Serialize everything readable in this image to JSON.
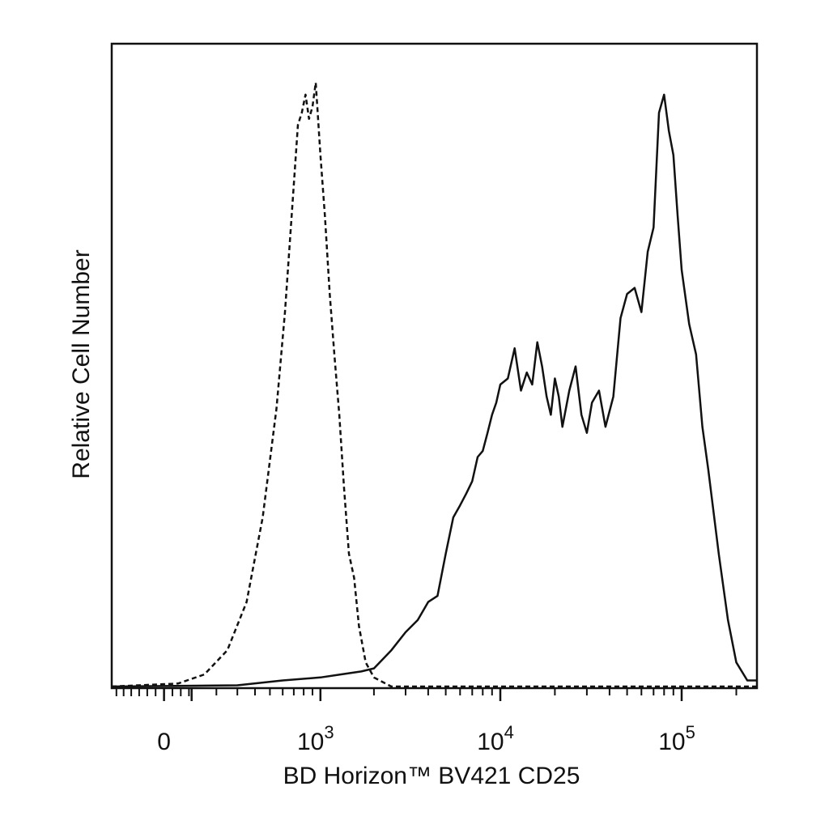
{
  "chart_data": {
    "type": "line",
    "chart_kind": "flow-cytometry-histogram",
    "xlabel": "BD Horizon™ BV421 CD25",
    "ylabel": "Relative Cell Number",
    "x_scale": "biexponential",
    "xlim": [
      -200,
      260000
    ],
    "ylim": [
      0,
      1
    ],
    "grid": false,
    "legend": "none",
    "x_tick_labels": [
      {
        "value": 0,
        "base": "0",
        "exp": ""
      },
      {
        "value": 1000,
        "base": "10",
        "exp": "3"
      },
      {
        "value": 10000,
        "base": "10",
        "exp": "4"
      },
      {
        "value": 100000,
        "base": "10",
        "exp": "5"
      }
    ],
    "series": [
      {
        "style": "dashed",
        "color": "#111111",
        "x": [
          -200,
          50,
          150,
          250,
          350,
          450,
          550,
          620,
          680,
          740,
          780,
          820,
          860,
          900,
          940,
          1000,
          1060,
          1130,
          1200,
          1280,
          1360,
          1450,
          1550,
          1650,
          1800,
          2000,
          2500,
          5000,
          20000,
          100000,
          260000
        ],
        "y": [
          0.0,
          0.005,
          0.02,
          0.06,
          0.14,
          0.28,
          0.46,
          0.62,
          0.78,
          0.93,
          0.95,
          0.98,
          0.94,
          0.96,
          1.0,
          0.88,
          0.78,
          0.65,
          0.55,
          0.45,
          0.33,
          0.22,
          0.18,
          0.1,
          0.04,
          0.015,
          0.0,
          0.0,
          0.0,
          0.0,
          0.0
        ]
      },
      {
        "style": "solid",
        "color": "#111111",
        "x": [
          -200,
          300,
          600,
          1000,
          1300,
          1700,
          2000,
          2500,
          3000,
          3500,
          4000,
          4500,
          5000,
          5500,
          6000,
          6500,
          7000,
          7500,
          8000,
          8500,
          9000,
          9500,
          10000,
          11000,
          12000,
          13000,
          14000,
          15000,
          16000,
          17000,
          18000,
          19000,
          20000,
          21000,
          22000,
          24000,
          26000,
          28000,
          30000,
          32000,
          35000,
          38000,
          42000,
          46000,
          50000,
          55000,
          60000,
          65000,
          70000,
          75000,
          80000,
          85000,
          90000,
          95000,
          100000,
          110000,
          120000,
          130000,
          140000,
          160000,
          180000,
          200000,
          230000,
          260000
        ],
        "y": [
          0.0,
          0.002,
          0.01,
          0.015,
          0.02,
          0.025,
          0.03,
          0.06,
          0.09,
          0.11,
          0.14,
          0.15,
          0.22,
          0.28,
          0.3,
          0.32,
          0.34,
          0.38,
          0.39,
          0.42,
          0.45,
          0.47,
          0.5,
          0.51,
          0.56,
          0.49,
          0.52,
          0.5,
          0.57,
          0.53,
          0.48,
          0.45,
          0.51,
          0.48,
          0.43,
          0.49,
          0.53,
          0.45,
          0.42,
          0.47,
          0.49,
          0.43,
          0.48,
          0.61,
          0.65,
          0.66,
          0.62,
          0.72,
          0.76,
          0.95,
          0.98,
          0.92,
          0.88,
          0.78,
          0.69,
          0.6,
          0.55,
          0.43,
          0.36,
          0.22,
          0.11,
          0.04,
          0.01,
          0.01
        ]
      }
    ]
  }
}
